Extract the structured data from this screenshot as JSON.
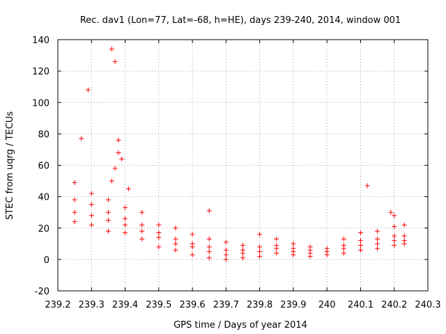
{
  "chart_data": {
    "type": "scatter",
    "title": "Rec. dav1 (Lon=77, Lat=-68, h=HE), days 239-240, 2014, window 001",
    "xlabel": "GPS time / Days of year 2014",
    "ylabel": "STEC from uqrg / TECUs",
    "xlim": [
      239.2,
      240.3
    ],
    "ylim": [
      -20,
      140
    ],
    "x_ticks": [
      "239.2",
      "239.3",
      "239.4",
      "239.5",
      "239.6",
      "239.7",
      "239.8",
      "239.9",
      "240",
      "240.1",
      "240.2",
      "240.3"
    ],
    "y_ticks": [
      "-20",
      "0",
      "20",
      "40",
      "60",
      "80",
      "100",
      "120",
      "140"
    ],
    "marker": "+",
    "color": "#ff0000",
    "grid": true,
    "outliers": [
      {
        "x": 239.36,
        "y": 134
      },
      {
        "x": 239.37,
        "y": 126
      },
      {
        "x": 239.29,
        "y": 108
      },
      {
        "x": 239.27,
        "y": 77
      },
      {
        "x": 239.38,
        "y": 76
      },
      {
        "x": 239.38,
        "y": 68
      },
      {
        "x": 239.39,
        "y": 64
      },
      {
        "x": 239.37,
        "y": 58
      },
      {
        "x": 239.36,
        "y": 50
      },
      {
        "x": 239.41,
        "y": 45
      },
      {
        "x": 240.12,
        "y": 47
      },
      {
        "x": 239.65,
        "y": 31
      },
      {
        "x": 240.19,
        "y": 30
      },
      {
        "x": 240.2,
        "y": 28
      }
    ],
    "series": [
      {
        "x": [
          239.25,
          239.3,
          239.35,
          239.4,
          239.45,
          239.5,
          239.55,
          239.6,
          239.65,
          239.7,
          239.75,
          239.8,
          239.85,
          239.9,
          239.95,
          240.0,
          240.05,
          240.1,
          240.15,
          240.2,
          240.23
        ],
        "y": [
          24,
          22,
          18,
          17,
          13,
          8,
          6,
          3,
          1,
          0,
          1,
          2,
          4,
          3,
          2,
          3,
          4,
          6,
          7,
          9,
          10
        ]
      },
      {
        "x": [
          239.25,
          239.3,
          239.35,
          239.4,
          239.45,
          239.5,
          239.55,
          239.6,
          239.65,
          239.7,
          239.75,
          239.8,
          239.85,
          239.9,
          239.95,
          240.0,
          240.05,
          240.1,
          240.15,
          240.2,
          240.23
        ],
        "y": [
          30,
          28,
          25,
          22,
          18,
          14,
          10,
          8,
          5,
          3,
          4,
          5,
          7,
          5,
          4,
          5,
          7,
          9,
          10,
          12,
          12
        ]
      },
      {
        "x": [
          239.25,
          239.3,
          239.35,
          239.4,
          239.45,
          239.5,
          239.55,
          239.6,
          239.65,
          239.7,
          239.75,
          239.8,
          239.85,
          239.9,
          239.95,
          240.0,
          240.05,
          240.1,
          240.15,
          240.2,
          240.23
        ],
        "y": [
          38,
          35,
          30,
          26,
          22,
          17,
          13,
          10,
          8,
          6,
          6,
          8,
          9,
          7,
          6,
          7,
          9,
          12,
          13,
          15,
          15
        ]
      },
      {
        "x": [
          239.25,
          239.3,
          239.35,
          239.4,
          239.45,
          239.5,
          239.55,
          239.6,
          239.65,
          239.7,
          239.75,
          239.8,
          239.85,
          239.9,
          239.95,
          240.05,
          240.1,
          240.15,
          240.2,
          240.23
        ],
        "y": [
          49,
          42,
          38,
          33,
          30,
          22,
          20,
          16,
          13,
          11,
          9,
          16,
          13,
          10,
          8,
          13,
          17,
          18,
          21,
          22
        ]
      }
    ]
  }
}
